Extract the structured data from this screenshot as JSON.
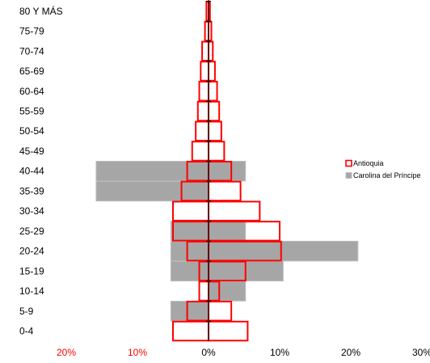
{
  "chart_data": {
    "type": "bar",
    "orientation": "horizontal",
    "style": "population-pyramid",
    "categories": [
      "0-4",
      "5-9",
      "10-14",
      "15-19",
      "20-24",
      "25-29",
      "30-34",
      "35-39",
      "40-44",
      "45-49",
      "50-54",
      "55-59",
      "60-64",
      "65-69",
      "70-74",
      "75-79",
      "80 Y MÁS"
    ],
    "series": [
      {
        "name": "Antioquia",
        "left": [
          5,
          3,
          1.3,
          1.3,
          3,
          5,
          5,
          3.8,
          3,
          2.3,
          1.8,
          1.5,
          1.3,
          1.1,
          0.9,
          0.5,
          0.3
        ],
        "right": [
          5.5,
          3.2,
          1.5,
          5.2,
          10.2,
          10,
          7.2,
          4.5,
          3.2,
          2.2,
          1.8,
          1.5,
          1.2,
          0.9,
          0.6,
          0.4,
          0.2
        ]
      },
      {
        "name": "Carolina del Príncipe",
        "left": [
          0,
          5.3,
          0,
          5.3,
          5.3,
          5.3,
          0,
          15.8,
          15.8,
          0,
          0,
          0,
          0,
          0,
          0,
          0,
          0
        ],
        "right": [
          0,
          0,
          5.2,
          10.5,
          21,
          5.2,
          0,
          0,
          5.2,
          0,
          0,
          0,
          0,
          0,
          0,
          0,
          0
        ]
      }
    ],
    "x_ticks": [
      {
        "value": -20,
        "label": "20%"
      },
      {
        "value": -10,
        "label": "10%"
      },
      {
        "value": 0,
        "label": "0%"
      },
      {
        "value": 10,
        "label": "10%"
      },
      {
        "value": 20,
        "label": "20%"
      },
      {
        "value": 30,
        "label": "30%"
      }
    ],
    "xlim": [
      -20,
      30
    ],
    "legend_position": "right",
    "grid": false,
    "colors": {
      "antioquia_stroke": "#ff0000",
      "antioquia_fill": "#ffffff",
      "carolina_fill": "#a6a6a6",
      "carolina_stroke": "#bfbfbf",
      "axis": "#000000",
      "negative_tick": "#ff0000",
      "positive_tick": "#000000"
    }
  }
}
